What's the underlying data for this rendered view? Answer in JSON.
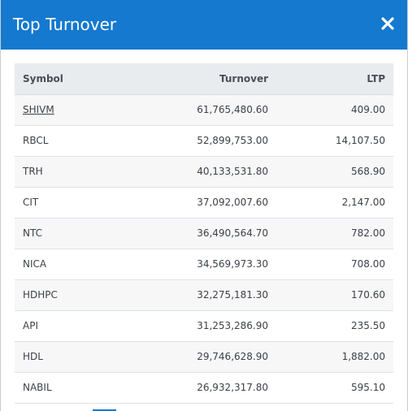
{
  "modal": {
    "title": "Top Turnover",
    "close_glyph": "×"
  },
  "table": {
    "headers": {
      "symbol": "Symbol",
      "turnover": "Turnover",
      "ltp": "LTP"
    },
    "rows": [
      {
        "symbol": "SHIVM",
        "turnover": "61,765,480.60",
        "ltp": "409.00"
      },
      {
        "symbol": "RBCL",
        "turnover": "52,899,753.00",
        "ltp": "14,107.50"
      },
      {
        "symbol": "TRH",
        "turnover": "40,133,531.80",
        "ltp": "568.90"
      },
      {
        "symbol": "CIT",
        "turnover": "37,092,007.60",
        "ltp": "2,147.00"
      },
      {
        "symbol": "NTC",
        "turnover": "36,490,564.70",
        "ltp": "782.00"
      },
      {
        "symbol": "NICA",
        "turnover": "34,569,973.30",
        "ltp": "708.00"
      },
      {
        "symbol": "HDHPC",
        "turnover": "32,275,181.30",
        "ltp": "170.60"
      },
      {
        "symbol": "API",
        "turnover": "31,253,286.90",
        "ltp": "235.50"
      },
      {
        "symbol": "HDL",
        "turnover": "29,746,628.90",
        "ltp": "1,882.00"
      },
      {
        "symbol": "NABIL",
        "turnover": "26,932,317.80",
        "ltp": "595.10"
      }
    ]
  },
  "colors": {
    "header_bg": "#1479cf",
    "table_header_bg": "#e9ecef",
    "row_alt_bg": "#f7f7f8"
  },
  "icons": {
    "close": "close-icon"
  }
}
